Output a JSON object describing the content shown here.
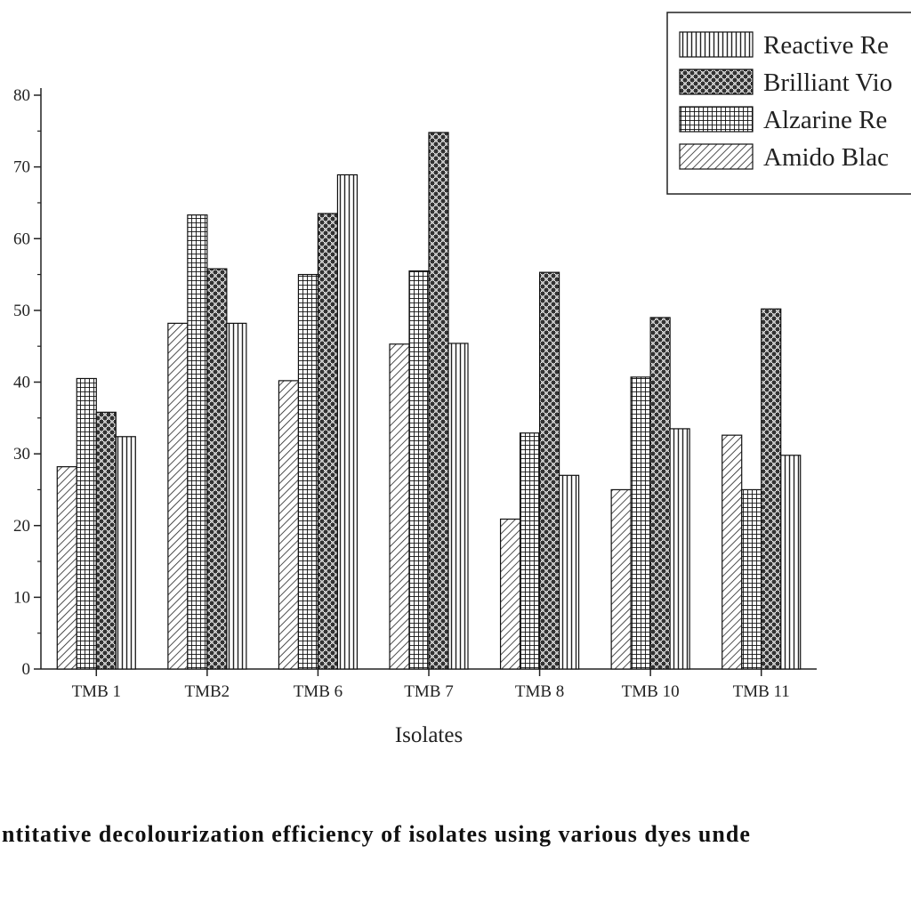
{
  "chart_data": {
    "type": "bar",
    "categories": [
      "TMB 1",
      "TMB2",
      "TMB 6",
      "TMB 7",
      "TMB 8",
      "TMB 10",
      "TMB 11"
    ],
    "series": [
      {
        "name": "Amido Blac",
        "pattern": "diag",
        "values": [
          28.2,
          48.2,
          40.2,
          45.3,
          20.9,
          25.0,
          32.6
        ]
      },
      {
        "name": "Alzarine Re",
        "pattern": "grid",
        "values": [
          40.5,
          63.3,
          55.0,
          55.5,
          32.9,
          40.7,
          25.0
        ]
      },
      {
        "name": "Brilliant Vio",
        "pattern": "check",
        "values": [
          35.8,
          55.8,
          63.5,
          74.8,
          55.3,
          49.0,
          50.2
        ]
      },
      {
        "name": "Reactive Re",
        "pattern": "vert",
        "values": [
          32.4,
          48.2,
          68.9,
          45.4,
          27.0,
          33.5,
          29.8
        ]
      }
    ],
    "legend_order": [
      "Reactive Re",
      "Brilliant Vio",
      "Alzarine Re",
      "Amido Blac"
    ],
    "yticks": [
      "0",
      "10",
      "20",
      "30",
      "40",
      "50",
      "60",
      "70",
      "80"
    ],
    "ylim": [
      0,
      80
    ],
    "xlabel": "Isolates",
    "ylabel": "",
    "legend_position": "top-right",
    "grid": false
  },
  "caption": "ntitative decolourization efficiency of isolates using various dyes unde"
}
